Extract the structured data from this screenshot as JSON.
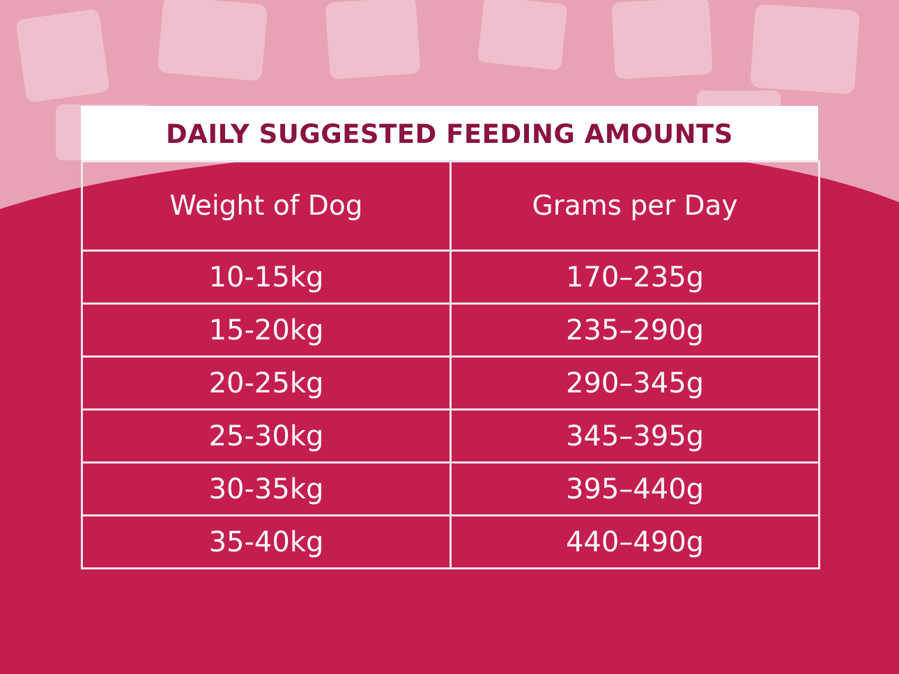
{
  "colors": {
    "crimson": "#c41e4f",
    "light_pink": "#e8a2b6",
    "title_text": "#8a1340",
    "white": "#ffffff"
  },
  "table": {
    "title": "DAILY SUGGESTED FEEDING AMOUNTS",
    "headers": [
      "Weight of Dog",
      "Grams per Day"
    ],
    "rows": [
      [
        "10-15kg",
        "170–235g"
      ],
      [
        "15-20kg",
        "235–290g"
      ],
      [
        "20-25kg",
        "290–345g"
      ],
      [
        "25-30kg",
        "345–395g"
      ],
      [
        "30-35kg",
        "395–440g"
      ],
      [
        "35-40kg",
        "440–490g"
      ]
    ]
  }
}
